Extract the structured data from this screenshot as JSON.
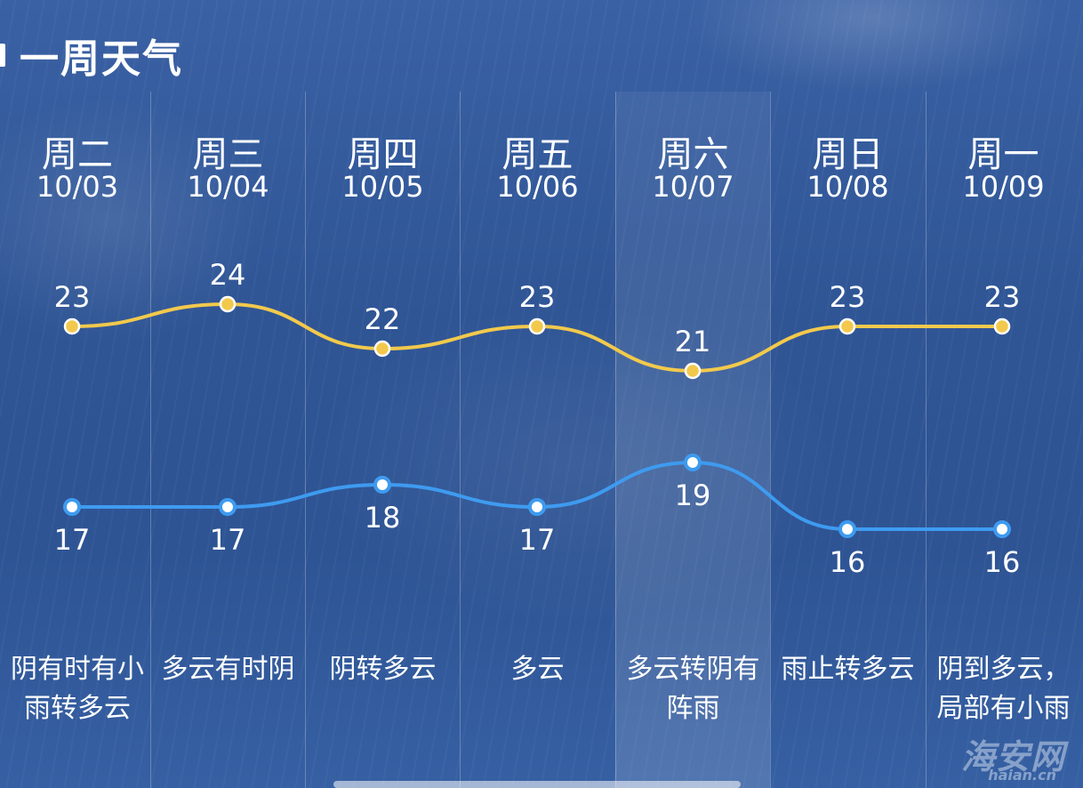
{
  "header": {
    "title": "一周天气"
  },
  "days": [
    {
      "day": "周二",
      "date": "10/03",
      "high": 23,
      "low": 17,
      "desc": "阴有时有小雨转多云"
    },
    {
      "day": "周三",
      "date": "10/04",
      "high": 24,
      "low": 17,
      "desc": "多云有时阴"
    },
    {
      "day": "周四",
      "date": "10/05",
      "high": 22,
      "low": 18,
      "desc": "阴转多云"
    },
    {
      "day": "周五",
      "date": "10/06",
      "high": 23,
      "low": 17,
      "desc": "多云"
    },
    {
      "day": "周六",
      "date": "10/07",
      "high": 21,
      "low": 19,
      "desc": "多云转阴有阵雨"
    },
    {
      "day": "周日",
      "date": "10/08",
      "high": 23,
      "low": 16,
      "desc": "雨止转多云"
    },
    {
      "day": "周一",
      "date": "10/09",
      "high": 23,
      "low": 16,
      "desc": "阴到多云，局部有小雨"
    }
  ],
  "colors": {
    "high_line": "#f2c94c",
    "low_line": "#3e9bf0"
  },
  "watermark": {
    "brand": "海安网",
    "domain": "haian.cn"
  }
}
